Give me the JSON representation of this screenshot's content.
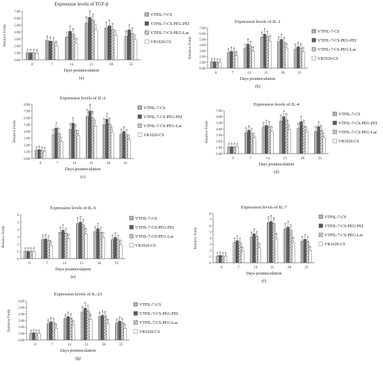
{
  "figure": {
    "legend_labels": [
      "VTPIL-7-CS",
      "VTPIL-7-CS-PEG-PEI",
      "VTPIL-7-CS-PEG-Lac",
      "VR1020-CS"
    ],
    "series_colors": [
      "#a8a8a8",
      "#555555",
      "#d8d8d8",
      "#ffffff"
    ]
  },
  "chart_data": [
    {
      "type": "bar",
      "panel": "(a)",
      "title": "Expression levels of TGF-β",
      "xlabel": "Days postinoculation",
      "ylabel": "Relative Folds",
      "categories": [
        "0",
        "7",
        "14",
        "21",
        "28",
        "35"
      ],
      "ylim": [
        0,
        7
      ],
      "yticks": [
        "0.00",
        "1.00",
        "2.00",
        "3.00",
        "4.00",
        "5.00",
        "6.00",
        "7.00"
      ],
      "series": [
        {
          "name": "VTPIL-7-CS",
          "values": [
            1.0,
            2.8,
            3.3,
            5.3,
            4.6,
            3.4
          ],
          "labels": [
            "a",
            "a",
            "c",
            "b",
            "b",
            "b"
          ]
        },
        {
          "name": "VTPIL-7-CS-PEG-PEI",
          "values": [
            1.0,
            2.7,
            4.1,
            6.1,
            4.9,
            4.3
          ],
          "labels": [
            "a",
            "a",
            "a",
            "a",
            "a",
            "a"
          ]
        },
        {
          "name": "VTPIL-7-CS-PEG-Lac",
          "values": [
            1.0,
            2.6,
            3.7,
            5.7,
            4.4,
            3.8
          ],
          "labels": [
            "a",
            "a",
            "b",
            "a",
            "b",
            "b"
          ]
        },
        {
          "name": "VR1020-CS",
          "values": [
            0.95,
            2.0,
            2.4,
            4.3,
            3.5,
            2.9
          ],
          "labels": [
            "a",
            "b",
            "d",
            "c",
            "c",
            "c"
          ]
        }
      ]
    },
    {
      "type": "bar",
      "panel": "(b)",
      "title": "Expression levels of IL-1",
      "xlabel": "Days postinoculation",
      "ylabel": "Relative Folds",
      "categories": [
        "0",
        "7",
        "14",
        "21",
        "28",
        "35"
      ],
      "ylim": [
        0,
        7
      ],
      "yticks": [
        "0.00",
        "1.00",
        "2.00",
        "3.00",
        "4.00",
        "5.00",
        "6.00",
        "7.00"
      ],
      "series": [
        {
          "name": "VTPIL-7-CS",
          "values": [
            1.1,
            2.7,
            3.5,
            5.4,
            4.6,
            3.3
          ],
          "labels": [
            "a",
            "a",
            "c",
            "a",
            "a",
            "b"
          ]
        },
        {
          "name": "VTPIL-7-CS-PEG-PEI",
          "values": [
            1.1,
            2.9,
            4.2,
            5.9,
            5.0,
            3.7
          ],
          "labels": [
            "a",
            "a",
            "a",
            "a",
            "a",
            "a"
          ]
        },
        {
          "name": "VTPIL-7-CS-PEG-Lac",
          "values": [
            1.0,
            2.8,
            3.8,
            5.5,
            4.5,
            3.5
          ],
          "labels": [
            "a",
            "a",
            "b",
            "a",
            "a",
            "a"
          ]
        },
        {
          "name": "VR1020-CS",
          "values": [
            1.0,
            2.2,
            2.9,
            4.7,
            3.5,
            2.8
          ],
          "labels": [
            "a",
            "b",
            "d",
            "b",
            "b",
            "b"
          ]
        }
      ]
    },
    {
      "type": "bar",
      "panel": "(c)",
      "title": "Expression levels of IL-2",
      "xlabel": "Days postinoculation",
      "ylabel": "Relative Folds",
      "categories": [
        "0",
        "7",
        "14",
        "21",
        "28",
        "35"
      ],
      "ylim": [
        0,
        8
      ],
      "yticks": [
        "0.00",
        "1.00",
        "2.00",
        "3.00",
        "4.00",
        "5.00",
        "6.00",
        "7.00",
        "8.00"
      ],
      "series": [
        {
          "name": "VTPIL-7-CS",
          "values": [
            1.2,
            3.5,
            4.3,
            6.2,
            5.0,
            3.6
          ],
          "labels": [
            "a",
            "b",
            "b",
            "b",
            "b",
            "a"
          ]
        },
        {
          "name": "VTPIL-7-CS-PEG-PEI",
          "values": [
            1.3,
            4.5,
            5.2,
            7.0,
            5.8,
            4.0
          ],
          "labels": [
            "a",
            "a",
            "a",
            "a",
            "a",
            "a"
          ]
        },
        {
          "name": "VTPIL-7-CS-PEG-Lac",
          "values": [
            1.2,
            3.7,
            4.2,
            6.0,
            5.1,
            3.5
          ],
          "labels": [
            "a",
            "b",
            "b",
            "b",
            "b",
            "b"
          ]
        },
        {
          "name": "VR1020-CS",
          "values": [
            1.1,
            2.5,
            3.4,
            4.8,
            3.9,
            2.8
          ],
          "labels": [
            "a",
            "c",
            "c",
            "c",
            "c",
            "c"
          ]
        }
      ]
    },
    {
      "type": "bar",
      "panel": "(d)",
      "title": "Expression levels of IL-4",
      "xlabel": "Days postinoculation",
      "ylabel": "Relative Folds",
      "categories": [
        "0",
        "7",
        "14",
        "21",
        "28",
        "35"
      ],
      "ylim": [
        0,
        7
      ],
      "yticks": [
        "0.00",
        "1.00",
        "2.00",
        "3.00",
        "4.00",
        "5.00",
        "6.00",
        "7.00"
      ],
      "series": [
        {
          "name": "VTPIL-7-CS",
          "values": [
            1.1,
            3.4,
            4.3,
            5.3,
            4.1,
            3.6
          ],
          "labels": [
            "a",
            "b",
            "a",
            "b",
            "b",
            "b"
          ]
        },
        {
          "name": "VTPIL-7-CS-PEG-PEI",
          "values": [
            1.1,
            3.8,
            4.6,
            6.0,
            5.2,
            4.4
          ],
          "labels": [
            "a",
            "a",
            "a",
            "a",
            "a",
            "a"
          ]
        },
        {
          "name": "VTPIL-7-CS-PEG-Lac",
          "values": [
            1.1,
            3.3,
            4.4,
            5.5,
            4.5,
            3.8
          ],
          "labels": [
            "a",
            "b",
            "a",
            "b",
            "b",
            "b"
          ]
        },
        {
          "name": "VR1020-CS",
          "values": [
            1.1,
            2.6,
            3.6,
            3.9,
            3.6,
            2.6
          ],
          "labels": [
            "a",
            "c",
            "b",
            "c",
            "c",
            "c"
          ]
        }
      ]
    },
    {
      "type": "bar",
      "panel": "(e)",
      "title": "Expression levels of IL-6",
      "xlabel": "Days postinoculation",
      "ylabel": "Relative Folds",
      "categories": [
        "0",
        "7",
        "14",
        "21",
        "28",
        "35"
      ],
      "ylim": [
        0,
        6
      ],
      "yticks": [
        "0",
        "1",
        "2",
        "3",
        "4",
        "5",
        "6"
      ],
      "series": [
        {
          "name": "VTPIL-7-CS",
          "values": [
            1.0,
            2.6,
            3.6,
            4.8,
            3.7,
            2.6
          ],
          "labels": [
            "a",
            "a",
            "a",
            "a",
            "a",
            "a"
          ]
        },
        {
          "name": "VTPIL-7-CS-PEG-PEI",
          "values": [
            1.0,
            2.7,
            3.9,
            5.0,
            4.1,
            2.9
          ],
          "labels": [
            "a",
            "a",
            "a",
            "a",
            "a",
            "a"
          ]
        },
        {
          "name": "VTPIL-7-CS-PEG-Lac",
          "values": [
            1.0,
            2.5,
            3.5,
            4.6,
            3.6,
            2.6
          ],
          "labels": [
            "a",
            "a",
            "a",
            "a",
            "a",
            "a"
          ]
        },
        {
          "name": "VR1020-CS",
          "values": [
            1.0,
            1.8,
            2.7,
            3.4,
            2.9,
            1.9
          ],
          "labels": [
            "a",
            "b",
            "b",
            "b",
            "b",
            "b"
          ]
        }
      ]
    },
    {
      "type": "bar",
      "panel": "(f)",
      "title": "Expression levels of IL-7",
      "xlabel": "Days postinoculation",
      "ylabel": "Relative Folds",
      "categories": [
        "0",
        "7",
        "14",
        "21",
        "28",
        "35"
      ],
      "ylim": [
        0,
        8
      ],
      "yticks": [
        "0",
        "1",
        "2",
        "3",
        "4",
        "5",
        "6",
        "7",
        "8"
      ],
      "series": [
        {
          "name": "VTPIL-7-CS",
          "values": [
            1.1,
            3.3,
            4.2,
            6.5,
            5.5,
            3.5
          ],
          "labels": [
            "a",
            "a",
            "a",
            "a",
            "a",
            "a"
          ]
        },
        {
          "name": "VTPIL-7-CS-PEG-PEI",
          "values": [
            1.2,
            3.6,
            4.7,
            6.7,
            5.8,
            3.8
          ],
          "labels": [
            "a",
            "a",
            "a",
            "a",
            "a",
            "a"
          ]
        },
        {
          "name": "VTPIL-7-CS-PEG-Lac",
          "values": [
            1.1,
            3.3,
            4.3,
            6.4,
            5.3,
            3.5
          ],
          "labels": [
            "a",
            "a",
            "a",
            "a",
            "a",
            "a"
          ]
        },
        {
          "name": "VR1020-CS",
          "values": [
            1.1,
            1.9,
            2.4,
            3.9,
            3.3,
            2.0
          ],
          "labels": [
            "a",
            "b",
            "b",
            "b",
            "b",
            "b"
          ]
        }
      ]
    },
    {
      "type": "bar",
      "panel": "(g)",
      "title": "Expression levels of IL-23",
      "xlabel": "Days postinoculation",
      "ylabel": "Relative Folds",
      "categories": [
        "0",
        "7",
        "14",
        "21",
        "28",
        "35"
      ],
      "ylim": [
        0,
        6
      ],
      "yticks": [
        "0.00",
        "1.00",
        "2.00",
        "3.00",
        "4.00",
        "5.00",
        "6.00"
      ],
      "series": [
        {
          "name": "VTPIL-7-CS",
          "values": [
            1.0,
            2.5,
            3.3,
            4.3,
            3.6,
            2.6
          ],
          "labels": [
            "a",
            "a",
            "a",
            "a",
            "a",
            "a"
          ]
        },
        {
          "name": "VTPIL-7-CS-PEG-PEI",
          "values": [
            1.1,
            2.8,
            3.6,
            4.9,
            3.8,
            2.9
          ],
          "labels": [
            "a",
            "a",
            "a",
            "a",
            "a",
            "a"
          ]
        },
        {
          "name": "VTPIL-7-CS-PEG-Lac",
          "values": [
            1.0,
            2.7,
            3.4,
            4.5,
            3.7,
            2.7
          ],
          "labels": [
            "a",
            "a",
            "a",
            "a",
            "a",
            "a"
          ]
        },
        {
          "name": "VR1020-CS",
          "values": [
            1.0,
            1.8,
            2.3,
            3.2,
            2.5,
            1.8
          ],
          "labels": [
            "a",
            "b",
            "b",
            "b",
            "b",
            "b"
          ]
        }
      ]
    }
  ]
}
